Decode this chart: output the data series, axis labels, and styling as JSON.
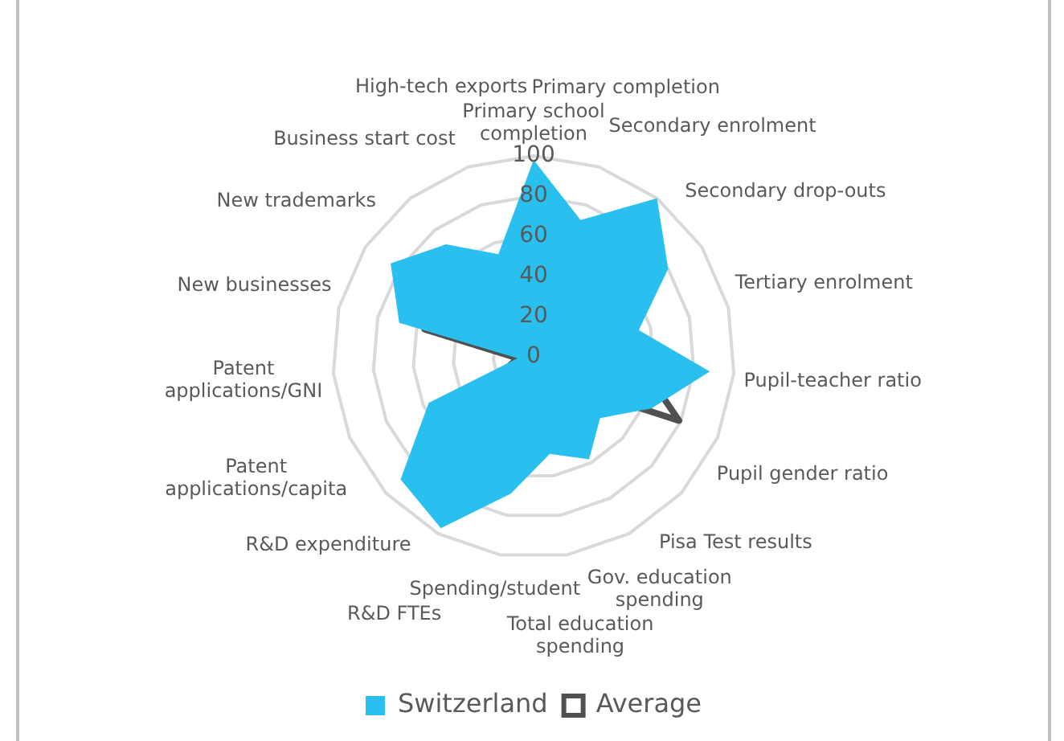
{
  "chart_data": {
    "type": "radar",
    "categories": [
      "Primary school completion",
      "Primary completion",
      "Secondary enrolment",
      "Secondary drop-outs",
      "Tertiary enrolment",
      "Pupil-teacher ratio",
      "Pupil gender ratio",
      "Pisa Test results",
      "Gov. education spending",
      "Total education spending",
      "Spending/student",
      "R&D FTEs",
      "R&D expenditure",
      "Patent applications/capita",
      "Patent applications/GNI",
      "New businesses",
      "New trademarks",
      "Business start cost",
      "High-tech exports"
    ],
    "series": [
      {
        "name": "Switzerland",
        "type": "area",
        "color": "#29c0f0",
        "values": [
          98,
          72,
          100,
          80,
          54,
          88,
          64,
          45,
          58,
          49,
          69,
          97,
          90,
          57,
          8,
          69,
          85,
          71,
          54
        ]
      },
      {
        "name": "Average",
        "color": "#505050",
        "values": [
          51,
          70,
          69,
          42,
          46,
          54,
          79,
          19,
          50,
          37,
          33,
          25,
          22,
          15,
          8,
          56,
          40,
          44,
          25
        ]
      }
    ],
    "ylim": [
      0,
      100
    ],
    "yticks": [
      0,
      20,
      40,
      60,
      80,
      100
    ],
    "grid": true,
    "legend": "bottom",
    "marker": "none",
    "line_style": "solid"
  }
}
